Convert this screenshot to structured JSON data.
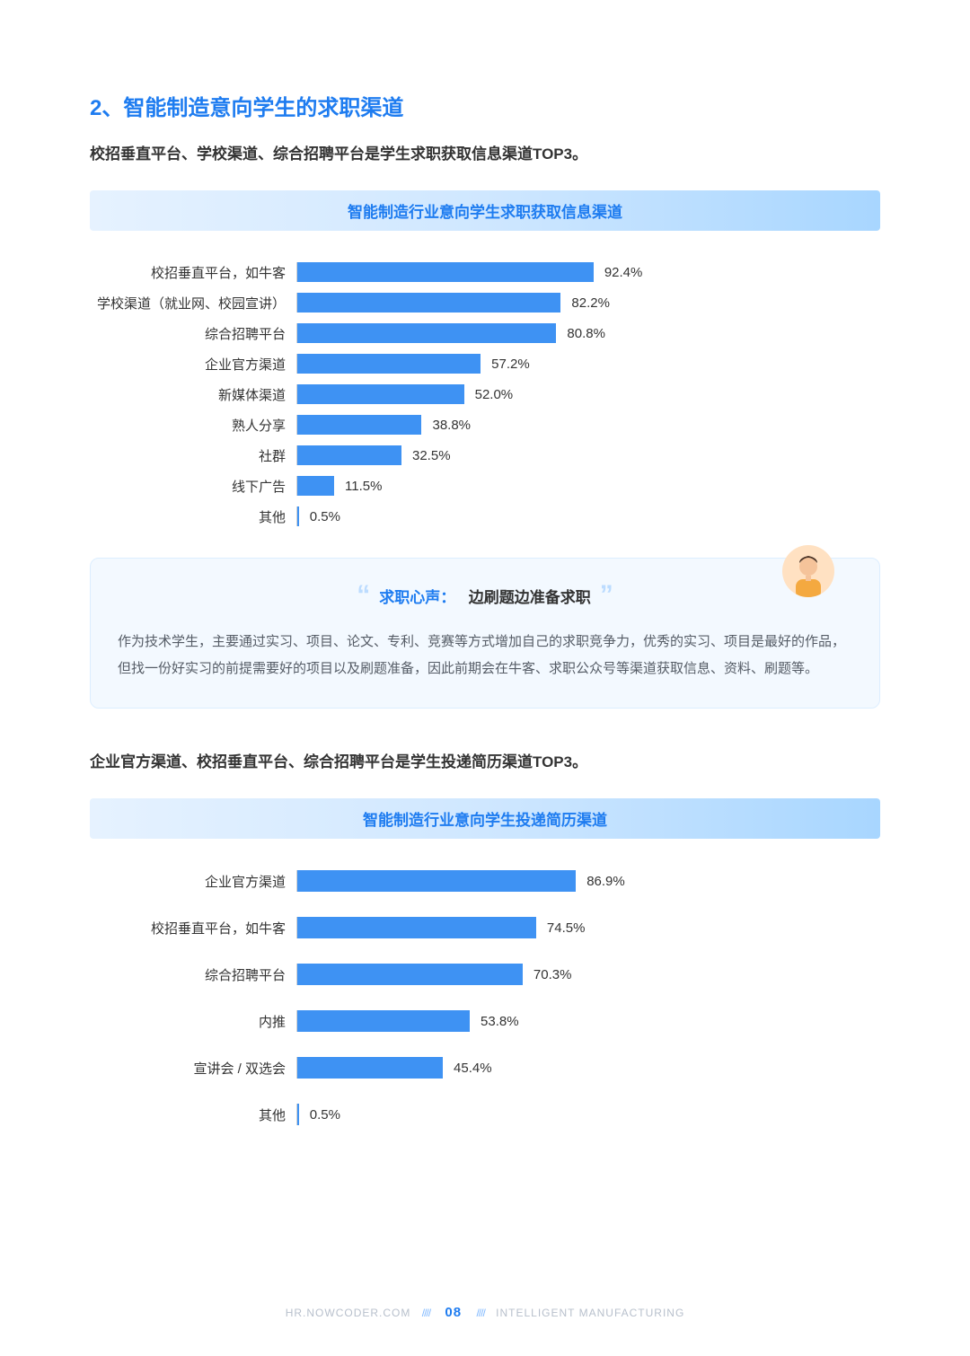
{
  "title": "2、智能制造意向学生的求职渠道",
  "sub1": "校招垂直平台、学校渠道、综合招聘平台是学生求职获取信息渠道TOP3。",
  "chart1": {
    "header": "智能制造行业意向学生求职获取信息渠道",
    "bar_color": "#3e92f3",
    "max": 100,
    "label_width": 230,
    "rows": [
      {
        "label": "校招垂直平台，如牛客",
        "value": 92.4,
        "display": "92.4%"
      },
      {
        "label": "学校渠道（就业网、校园宣讲）",
        "value": 82.2,
        "display": "82.2%"
      },
      {
        "label": "综合招聘平台",
        "value": 80.8,
        "display": "80.8%"
      },
      {
        "label": "企业官方渠道",
        "value": 57.2,
        "display": "57.2%"
      },
      {
        "label": "新媒体渠道",
        "value": 52.0,
        "display": "52.0%"
      },
      {
        "label": "熟人分享",
        "value": 38.8,
        "display": "38.8%"
      },
      {
        "label": "社群",
        "value": 32.5,
        "display": "32.5%"
      },
      {
        "label": "线下广告",
        "value": 11.5,
        "display": "11.5%"
      },
      {
        "label": "其他",
        "value": 0.5,
        "display": "0.5%"
      }
    ]
  },
  "quote": {
    "title_a": "求职心声：",
    "title_b": "边刷题边准备求职",
    "body": "作为技术学生，主要通过实习、项目、论文、专利、竞赛等方式增加自己的求职竞争力，优秀的实习、项目是最好的作品，但找一份好实习的前提需要好的项目以及刷题准备，因此前期会在牛客、求职公众号等渠道获取信息、资料、刷题等。"
  },
  "sub2": "企业官方渠道、校招垂直平台、综合招聘平台是学生投递简历渠道TOP3。",
  "chart2": {
    "header": "智能制造行业意向学生投递简历渠道",
    "bar_color": "#3e92f3",
    "max": 100,
    "label_width": 230,
    "rows": [
      {
        "label": "企业官方渠道",
        "value": 86.9,
        "display": "86.9%"
      },
      {
        "label": "校招垂直平台，如牛客",
        "value": 74.5,
        "display": "74.5%"
      },
      {
        "label": "综合招聘平台",
        "value": 70.3,
        "display": "70.3%"
      },
      {
        "label": "内推",
        "value": 53.8,
        "display": "53.8%"
      },
      {
        "label": "宣讲会 / 双选会",
        "value": 45.4,
        "display": "45.4%"
      },
      {
        "label": "其他",
        "value": 0.5,
        "display": "0.5%"
      }
    ]
  },
  "footer": {
    "left": "HR.NOWCODER.COM",
    "page": "08",
    "right": "INTELLIGENT MANUFACTURING"
  }
}
